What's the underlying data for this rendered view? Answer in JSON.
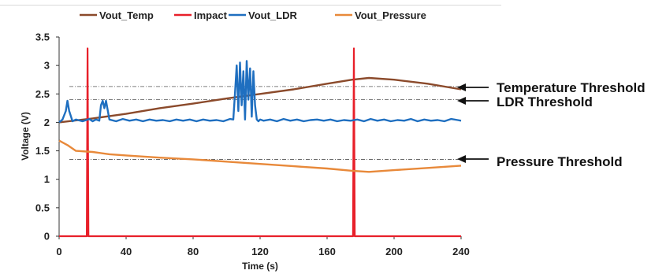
{
  "chart_data": {
    "type": "line",
    "title": "",
    "xlabel": "Time (s)",
    "ylabel": "Voltage (V)",
    "xlim": [
      0,
      240
    ],
    "ylim": [
      0,
      3.5
    ],
    "x_ticks": [
      "0",
      "40",
      "80",
      "120",
      "160",
      "200",
      "240"
    ],
    "y_ticks": [
      "0",
      "0.5",
      "1",
      "1.5",
      "2",
      "2.5",
      "3",
      "3.5"
    ],
    "legend_position": "top",
    "grid": false,
    "series": [
      {
        "name": "Vout_Temp",
        "color": "#8b4a2b",
        "x": [
          0,
          20,
          40,
          60,
          80,
          100,
          120,
          140,
          160,
          175,
          185,
          200,
          220,
          240
        ],
        "y": [
          2.0,
          2.07,
          2.15,
          2.25,
          2.33,
          2.42,
          2.5,
          2.58,
          2.68,
          2.75,
          2.78,
          2.75,
          2.68,
          2.58
        ]
      },
      {
        "name": "Impact",
        "color": "#e8202a",
        "x": [
          0,
          16.5,
          17,
          17.5,
          175.5,
          176,
          176.5,
          240
        ],
        "y": [
          0,
          0,
          3.3,
          0,
          0,
          3.3,
          0,
          0
        ]
      },
      {
        "name": "Vout_LDR",
        "color": "#1f6fc0",
        "x": [
          0,
          2,
          4,
          5,
          6,
          8,
          10,
          14,
          18,
          20,
          22,
          24,
          25,
          26,
          27,
          28,
          30,
          34,
          38,
          42,
          46,
          50,
          54,
          58,
          62,
          66,
          70,
          74,
          78,
          82,
          86,
          90,
          94,
          98,
          102,
          104,
          105,
          106,
          107,
          108,
          109,
          110,
          111,
          112,
          113,
          114,
          115,
          116,
          117,
          118,
          119,
          120,
          122,
          126,
          130,
          134,
          138,
          142,
          146,
          150,
          154,
          158,
          162,
          166,
          170,
          174,
          178,
          182,
          186,
          190,
          194,
          198,
          202,
          206,
          210,
          214,
          218,
          222,
          226,
          230,
          234,
          238,
          240
        ],
        "y": [
          2.0,
          2.05,
          2.2,
          2.38,
          2.2,
          2.02,
          2.05,
          2.02,
          2.06,
          2.02,
          2.05,
          2.03,
          2.3,
          2.38,
          2.25,
          2.38,
          2.05,
          2.02,
          2.06,
          2.03,
          2.05,
          2.02,
          2.05,
          2.03,
          2.04,
          2.02,
          2.05,
          2.03,
          2.05,
          2.02,
          2.05,
          2.03,
          2.04,
          2.02,
          2.06,
          2.05,
          2.5,
          3.0,
          2.2,
          3.05,
          2.3,
          2.9,
          2.05,
          3.08,
          2.4,
          2.95,
          2.1,
          2.9,
          2.3,
          2.05,
          2.02,
          2.05,
          2.03,
          2.05,
          2.02,
          2.06,
          2.03,
          2.05,
          2.02,
          2.04,
          2.05,
          2.03,
          2.05,
          2.02,
          2.04,
          2.03,
          2.05,
          2.02,
          2.06,
          2.03,
          2.05,
          2.02,
          2.04,
          2.03,
          2.06,
          2.02,
          2.05,
          2.03,
          2.04,
          2.02,
          2.06,
          2.04,
          2.03
        ]
      },
      {
        "name": "Vout_Pressure",
        "color": "#e8893a",
        "x": [
          0,
          5,
          10,
          20,
          30,
          40,
          60,
          80,
          100,
          120,
          140,
          160,
          175,
          185,
          200,
          220,
          240
        ],
        "y": [
          1.68,
          1.6,
          1.5,
          1.48,
          1.44,
          1.42,
          1.38,
          1.35,
          1.31,
          1.27,
          1.23,
          1.19,
          1.15,
          1.13,
          1.16,
          1.2,
          1.24
        ]
      }
    ],
    "thresholds": [
      {
        "label": "Temperature Threshold",
        "y": 2.63
      },
      {
        "label": "LDR Threshold",
        "y": 2.4
      },
      {
        "label": "Pressure Threshold",
        "y": 1.35
      }
    ]
  }
}
